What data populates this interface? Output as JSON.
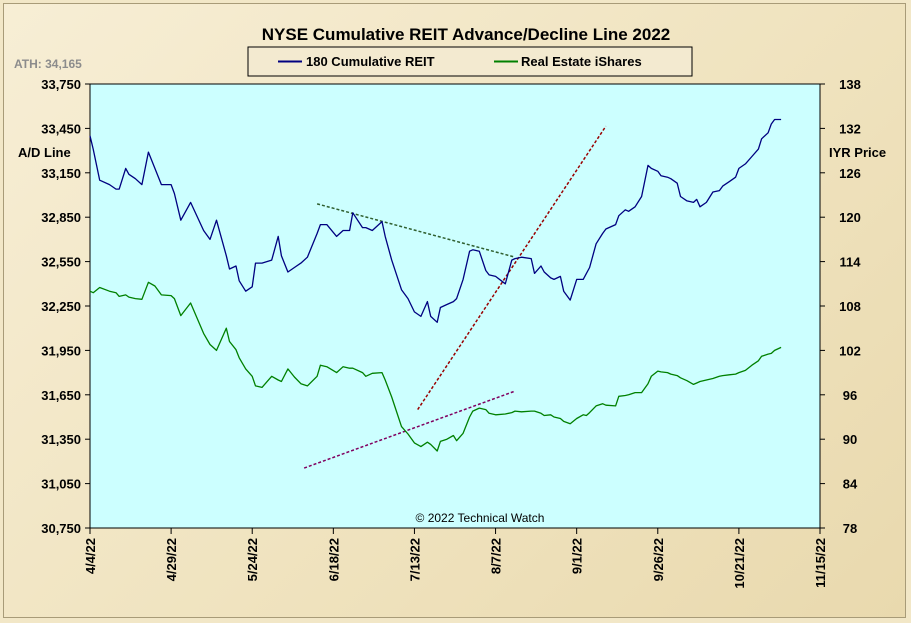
{
  "chart_data": {
    "type": "line",
    "title": "NYSE Cumulative  REIT Advance/Decline Line 2022",
    "ath_label": "ATH: 34,165",
    "ylabel_left": "A/D Line",
    "ylabel_right": "IYR Price",
    "copyright": "© 2022 Technical  Watch",
    "x_tick_labels": [
      "4/4/22",
      "4/29/22",
      "5/24/22",
      "6/18/22",
      "7/13/22",
      "8/7/22",
      "9/1/22",
      "9/26/22",
      "10/21/22",
      "11/15/22"
    ],
    "x_range_days": [
      0,
      225
    ],
    "y_left": {
      "range": [
        30750,
        33750
      ],
      "ticks": [
        "30,750",
        "31,050",
        "31,350",
        "31,650",
        "31,950",
        "32,250",
        "32,550",
        "32,850",
        "33,150",
        "33,450",
        "33,750"
      ]
    },
    "y_right": {
      "range": [
        78,
        138
      ],
      "ticks": [
        "78",
        "84",
        "90",
        "96",
        "102",
        "108",
        "114",
        "120",
        "126",
        "132",
        "138"
      ]
    },
    "grid": false,
    "legend_position": "top",
    "colors": {
      "plot_bg": "#ccffff",
      "ad_line": "#000080",
      "price_line": "#008000",
      "trend_red": "#990000",
      "trend_green": "#2f5f2f",
      "trend_purple": "#800060"
    },
    "series": [
      {
        "name": "180 Cumulative REIT",
        "axis": "left",
        "color": "#000080",
        "x": [
          0,
          1,
          3,
          6,
          8,
          9,
          11,
          12,
          14,
          16,
          18,
          20,
          22,
          25,
          26,
          28,
          31,
          35,
          37,
          39,
          42,
          43,
          45,
          46,
          48,
          50,
          51,
          53,
          56,
          58,
          59,
          61,
          63,
          65,
          67,
          70,
          71,
          73,
          76,
          78,
          80,
          81,
          84,
          85,
          87,
          90,
          91,
          93,
          96,
          98,
          100,
          102,
          104,
          105,
          107,
          108,
          110,
          112,
          113,
          115,
          117,
          118,
          120,
          122,
          123,
          125,
          128,
          130,
          131,
          133,
          136,
          137,
          139,
          140,
          142,
          143,
          145,
          146,
          148,
          150,
          152,
          153,
          154,
          156,
          158,
          159,
          162,
          163,
          165,
          166,
          168,
          170,
          172,
          173,
          175,
          176,
          178,
          179,
          181,
          182,
          184,
          186,
          187,
          188,
          190,
          192,
          194,
          195,
          197,
          199,
          200,
          202,
          204,
          206,
          207,
          209,
          210,
          211,
          213
        ],
        "values": [
          33400,
          33310,
          33100,
          33070,
          33040,
          33040,
          33180,
          33140,
          33110,
          33070,
          33290,
          33180,
          33070,
          33070,
          33010,
          32830,
          32950,
          32760,
          32700,
          32830,
          32590,
          32500,
          32520,
          32420,
          32350,
          32380,
          32540,
          32540,
          32560,
          32720,
          32590,
          32480,
          32510,
          32540,
          32580,
          32740,
          32800,
          32800,
          32720,
          32760,
          32760,
          32880,
          32780,
          32780,
          32760,
          32820,
          32720,
          32560,
          32360,
          32300,
          32210,
          32180,
          32280,
          32180,
          32140,
          32240,
          32260,
          32280,
          32300,
          32430,
          32620,
          32630,
          32620,
          32490,
          32460,
          32450,
          32400,
          32560,
          32570,
          32580,
          32570,
          32470,
          32520,
          32480,
          32440,
          32430,
          32450,
          32350,
          32290,
          32430,
          32430,
          32470,
          32510,
          32670,
          32740,
          32770,
          32800,
          32860,
          32900,
          32890,
          32920,
          32990,
          33200,
          33180,
          33160,
          33130,
          33120,
          33110,
          33080,
          32990,
          32960,
          32950,
          32970,
          32920,
          32950,
          33020,
          33030,
          33060,
          33090,
          33120,
          33180,
          33210,
          33260,
          33310,
          33380,
          33420,
          33480,
          33510,
          33510
        ]
      },
      {
        "name": "Real Estate iShares",
        "axis": "right",
        "color": "#008000",
        "x": [
          0,
          1,
          3,
          6,
          8,
          9,
          11,
          12,
          14,
          16,
          18,
          20,
          22,
          25,
          26,
          28,
          31,
          35,
          37,
          39,
          42,
          43,
          45,
          46,
          48,
          50,
          51,
          53,
          56,
          58,
          59,
          61,
          63,
          65,
          67,
          70,
          71,
          73,
          76,
          78,
          80,
          81,
          84,
          85,
          87,
          90,
          91,
          93,
          96,
          98,
          100,
          102,
          104,
          105,
          107,
          108,
          110,
          112,
          113,
          115,
          117,
          118,
          120,
          122,
          123,
          125,
          128,
          130,
          131,
          133,
          136,
          137,
          139,
          140,
          142,
          143,
          145,
          146,
          148,
          150,
          152,
          153,
          154,
          156,
          158,
          159,
          162,
          163,
          165,
          166,
          168,
          170,
          172,
          173,
          175,
          176,
          178,
          179,
          181,
          182,
          184,
          186,
          187,
          188,
          190,
          192,
          194,
          195,
          197,
          199,
          200,
          202,
          204,
          206,
          207,
          209,
          210,
          211,
          213
        ],
        "values": [
          110.0,
          109.8,
          110.5,
          110.0,
          109.8,
          109.3,
          109.5,
          109.2,
          109.0,
          108.9,
          111.2,
          110.7,
          109.5,
          109.4,
          109.0,
          106.7,
          108.4,
          104.3,
          102.8,
          102.0,
          105.0,
          103.2,
          102.1,
          101.0,
          99.5,
          98.5,
          97.2,
          97.0,
          98.5,
          98.0,
          97.8,
          99.5,
          98.4,
          97.5,
          97.2,
          98.5,
          100.0,
          99.8,
          99.0,
          99.8,
          99.6,
          99.6,
          99.0,
          98.5,
          98.9,
          99.0,
          98.0,
          95.7,
          91.7,
          90.7,
          89.5,
          89.0,
          89.6,
          89.3,
          88.4,
          89.7,
          90.0,
          90.5,
          89.8,
          90.8,
          93.0,
          93.8,
          94.2,
          94.0,
          93.5,
          93.3,
          93.4,
          93.6,
          93.8,
          93.7,
          93.8,
          93.8,
          93.5,
          93.2,
          93.3,
          93.0,
          92.8,
          92.4,
          92.1,
          92.8,
          93.3,
          93.2,
          93.6,
          94.5,
          94.8,
          94.6,
          94.5,
          95.8,
          95.9,
          96.0,
          96.3,
          96.3,
          97.5,
          98.5,
          99.2,
          99.1,
          99.0,
          98.8,
          98.6,
          98.3,
          97.9,
          97.4,
          97.6,
          97.8,
          98.0,
          98.2,
          98.5,
          98.6,
          98.7,
          98.8,
          99.0,
          99.3,
          100.0,
          100.6,
          101.2,
          101.5,
          101.6,
          102.0,
          102.4
        ]
      }
    ],
    "trendlines": [
      {
        "color": "#990000",
        "axis": "left",
        "x": [
          101,
          159
        ],
        "values": [
          31550,
          33465
        ]
      },
      {
        "color": "#2f5f2f",
        "axis": "left",
        "x": [
          70,
          131
        ],
        "values": [
          32940,
          32580
        ]
      },
      {
        "color": "#800060",
        "axis": "left",
        "x": [
          66,
          131
        ],
        "values": [
          31155,
          31675
        ]
      }
    ]
  }
}
